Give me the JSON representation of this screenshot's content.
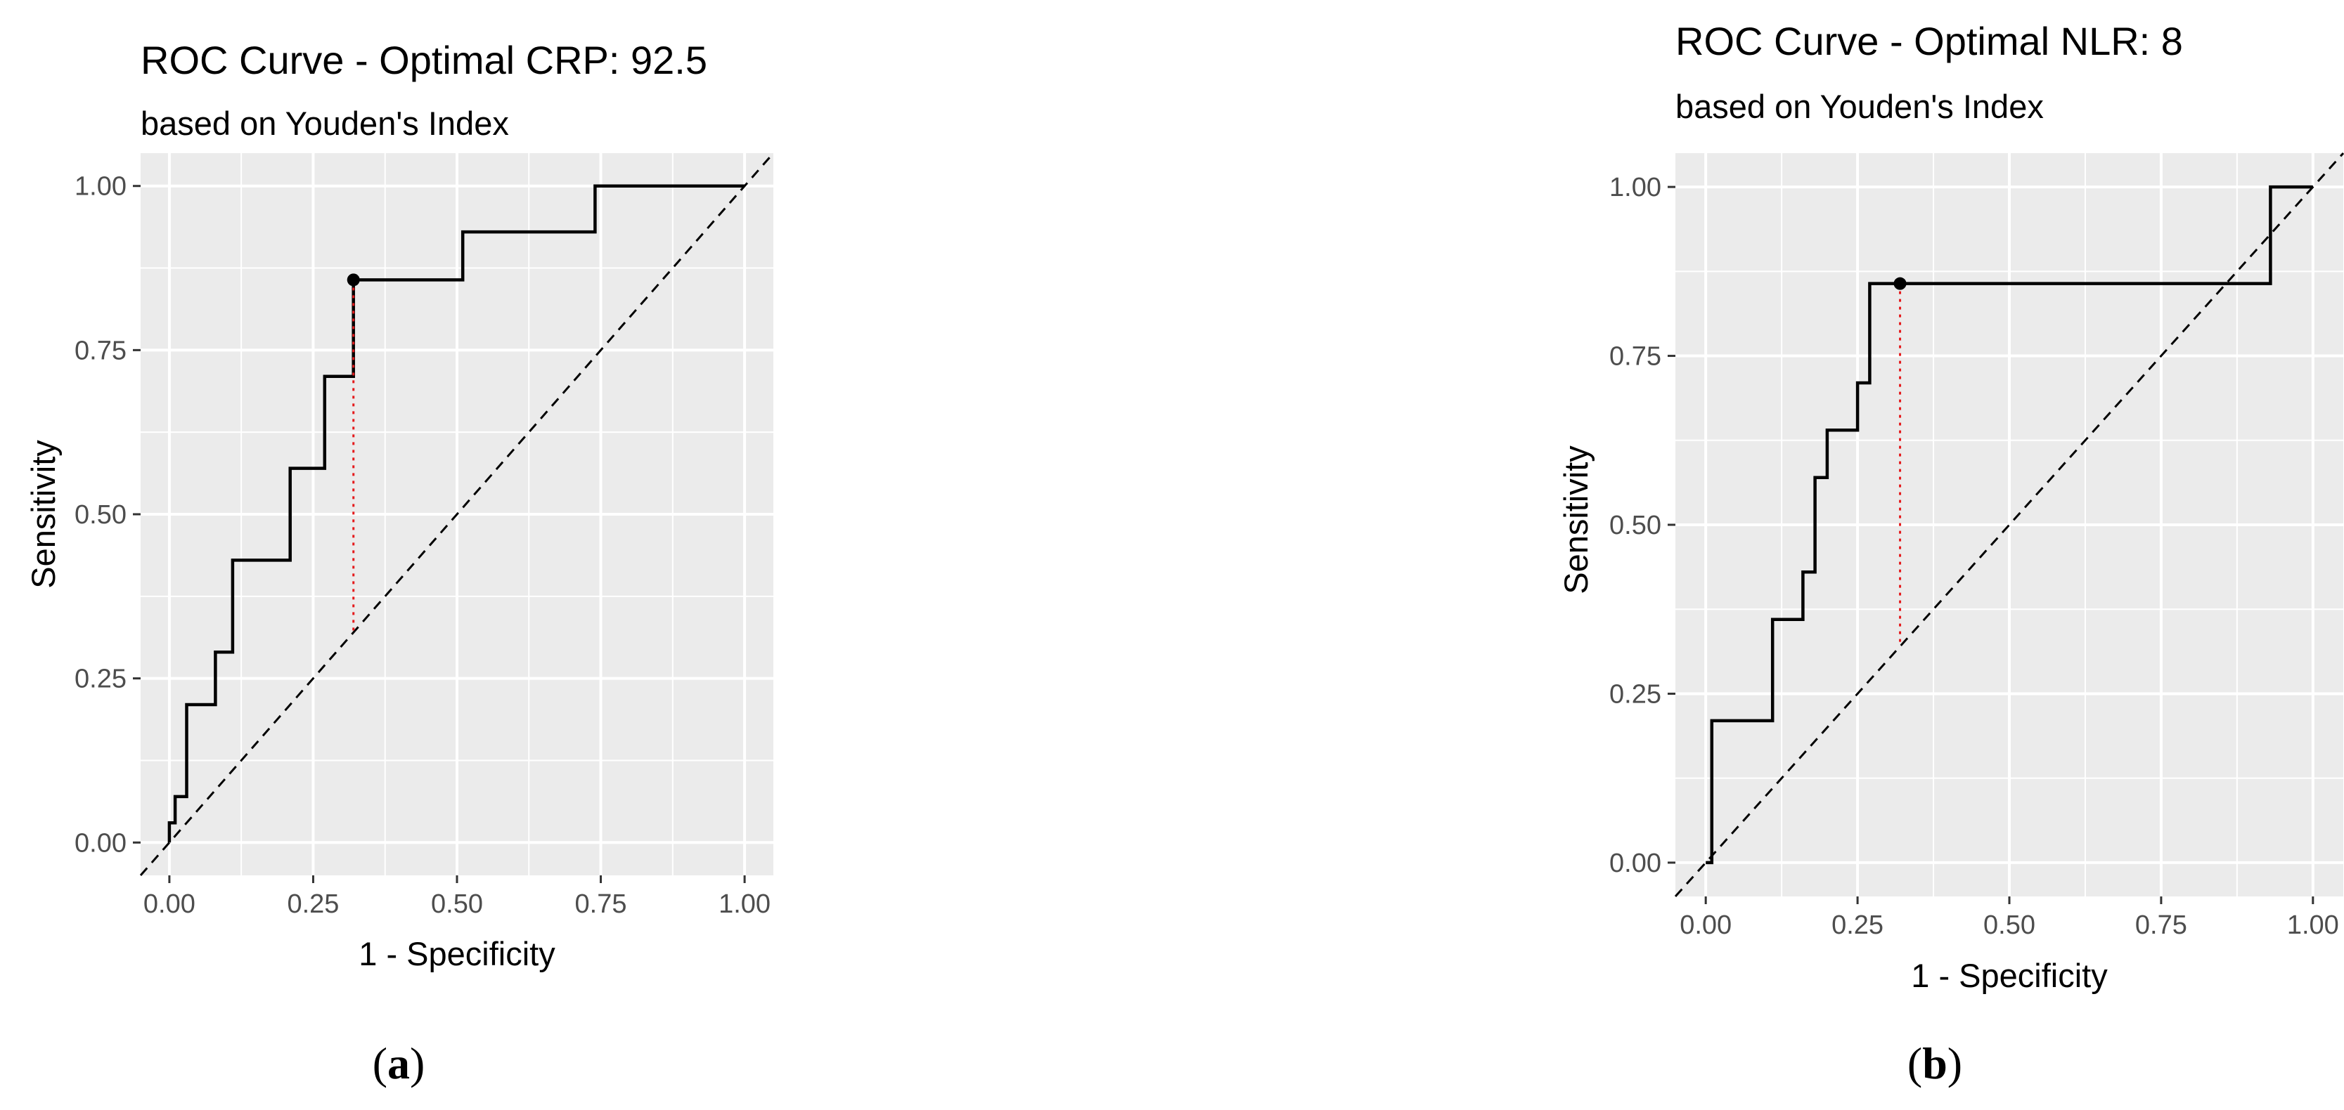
{
  "chart_data": [
    {
      "type": "line",
      "panel_label": "a",
      "title": "ROC Curve - Optimal CRP: 92.5",
      "subtitle": "based on Youden's Index",
      "xlabel": "1 - Specificity",
      "ylabel": "Sensitivity",
      "xlim": [
        -0.05,
        1.05
      ],
      "ylim": [
        -0.05,
        1.05
      ],
      "x_ticks": [
        "0.00",
        "0.25",
        "0.50",
        "0.75",
        "1.00"
      ],
      "y_ticks": [
        "0.00",
        "0.25",
        "0.50",
        "0.75",
        "1.00"
      ],
      "grid": true,
      "roc_curve": {
        "x": [
          0.0,
          0.0,
          0.01,
          0.01,
          0.03,
          0.03,
          0.08,
          0.08,
          0.11,
          0.11,
          0.21,
          0.21,
          0.27,
          0.27,
          0.32,
          0.32,
          0.51,
          0.51,
          0.74,
          0.74,
          1.0
        ],
        "y": [
          0.0,
          0.03,
          0.03,
          0.07,
          0.07,
          0.21,
          0.21,
          0.29,
          0.29,
          0.43,
          0.43,
          0.57,
          0.57,
          0.71,
          0.71,
          0.857,
          0.857,
          0.93,
          0.93,
          1.0,
          1.0
        ]
      },
      "reference_line": {
        "x": [
          -0.05,
          1.05
        ],
        "y": [
          -0.05,
          1.05
        ]
      },
      "optimal_point": {
        "x": 0.32,
        "y": 0.857
      },
      "colors": {
        "curve": "#000000",
        "reference": "#000000",
        "optimal_marker": "#000000",
        "youden_line": "#e41a1c",
        "panel_bg": "#ebebeb",
        "grid": "#ffffff"
      }
    },
    {
      "type": "line",
      "panel_label": "b",
      "title": "ROC Curve - Optimal NLR: 8",
      "subtitle": "based on Youden's Index",
      "xlabel": "1 - Specificity",
      "ylabel": "Sensitivity",
      "xlim": [
        -0.05,
        1.05
      ],
      "ylim": [
        -0.05,
        1.05
      ],
      "x_ticks": [
        "0.00",
        "0.25",
        "0.50",
        "0.75",
        "1.00"
      ],
      "y_ticks": [
        "0.00",
        "0.25",
        "0.50",
        "0.75",
        "1.00"
      ],
      "grid": true,
      "roc_curve": {
        "x": [
          0.0,
          0.01,
          0.01,
          0.11,
          0.11,
          0.16,
          0.16,
          0.18,
          0.18,
          0.2,
          0.2,
          0.25,
          0.25,
          0.27,
          0.27,
          0.32,
          0.32,
          0.93,
          0.93,
          1.0
        ],
        "y": [
          0.0,
          0.0,
          0.21,
          0.21,
          0.36,
          0.36,
          0.43,
          0.43,
          0.57,
          0.57,
          0.64,
          0.64,
          0.71,
          0.71,
          0.857,
          0.857,
          0.857,
          0.857,
          1.0,
          1.0
        ]
      },
      "reference_line": {
        "x": [
          -0.05,
          1.05
        ],
        "y": [
          -0.05,
          1.05
        ]
      },
      "optimal_point": {
        "x": 0.32,
        "y": 0.857
      },
      "colors": {
        "curve": "#000000",
        "reference": "#000000",
        "optimal_marker": "#000000",
        "youden_line": "#e41a1c",
        "panel_bg": "#ebebeb",
        "grid": "#ffffff"
      }
    }
  ]
}
